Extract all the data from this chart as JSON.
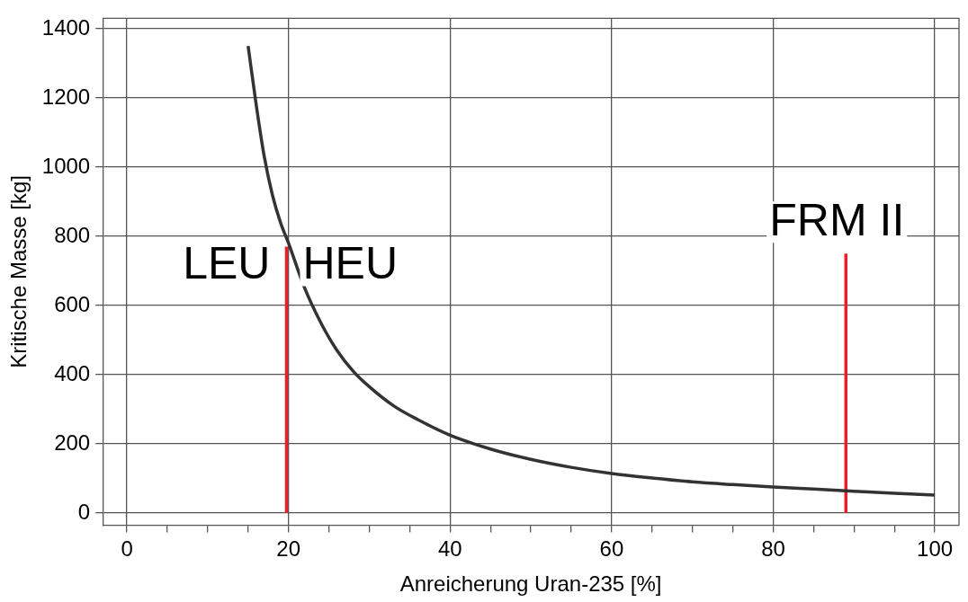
{
  "chart_data": {
    "type": "line",
    "xlabel": "Anreicherung Uran-235 [%]",
    "ylabel": "Kritische Masse [kg]",
    "series": [
      {
        "color": "#333333",
        "x": [
          15,
          16,
          17,
          18,
          19,
          20,
          22,
          24,
          26,
          28,
          30,
          33,
          36,
          40,
          45,
          50,
          55,
          60,
          65,
          70,
          75,
          80,
          85,
          90,
          95,
          100
        ],
        "values": [
          1350,
          1180,
          1030,
          920,
          840,
          780,
          650,
          550,
          470,
          410,
          365,
          310,
          270,
          225,
          185,
          155,
          132,
          114,
          101,
          90,
          82,
          75,
          69,
          63,
          57,
          52
        ]
      },
      {
        "color": "#e8202a",
        "x": [
          19.75,
          19.75
        ],
        "values": [
          0,
          770
        ]
      },
      {
        "color": "#e8202a",
        "x": [
          89,
          89
        ],
        "values": [
          0,
          750
        ]
      }
    ],
    "annotations": [
      "LEU",
      "HEU",
      "FRM II"
    ],
    "xlim": [
      -3,
      103
    ],
    "ylim": [
      -35,
      1430
    ],
    "xticks": [
      0,
      {
        "value": 5,
        "label": null
      },
      {
        "value": 10,
        "label": null
      },
      {
        "value": 15,
        "label": null
      },
      20,
      {
        "value": 25,
        "label": null
      },
      {
        "value": 30,
        "label": null
      },
      {
        "value": 35,
        "label": null
      },
      40,
      {
        "value": 45,
        "label": null
      },
      {
        "value": 50,
        "label": null
      },
      {
        "value": 55,
        "label": null
      },
      60,
      {
        "value": 65,
        "label": null
      },
      {
        "value": 70,
        "label": null
      },
      {
        "value": 75,
        "label": null
      },
      80,
      {
        "value": 85,
        "label": null
      },
      {
        "value": 90,
        "label": null
      },
      {
        "value": 95,
        "label": null
      },
      100
    ],
    "yticks": [
      0,
      200,
      400,
      600,
      800,
      1000,
      1200,
      1400
    ],
    "grid": true,
    "legend": false,
    "marker": "none",
    "line_style": "solid"
  }
}
